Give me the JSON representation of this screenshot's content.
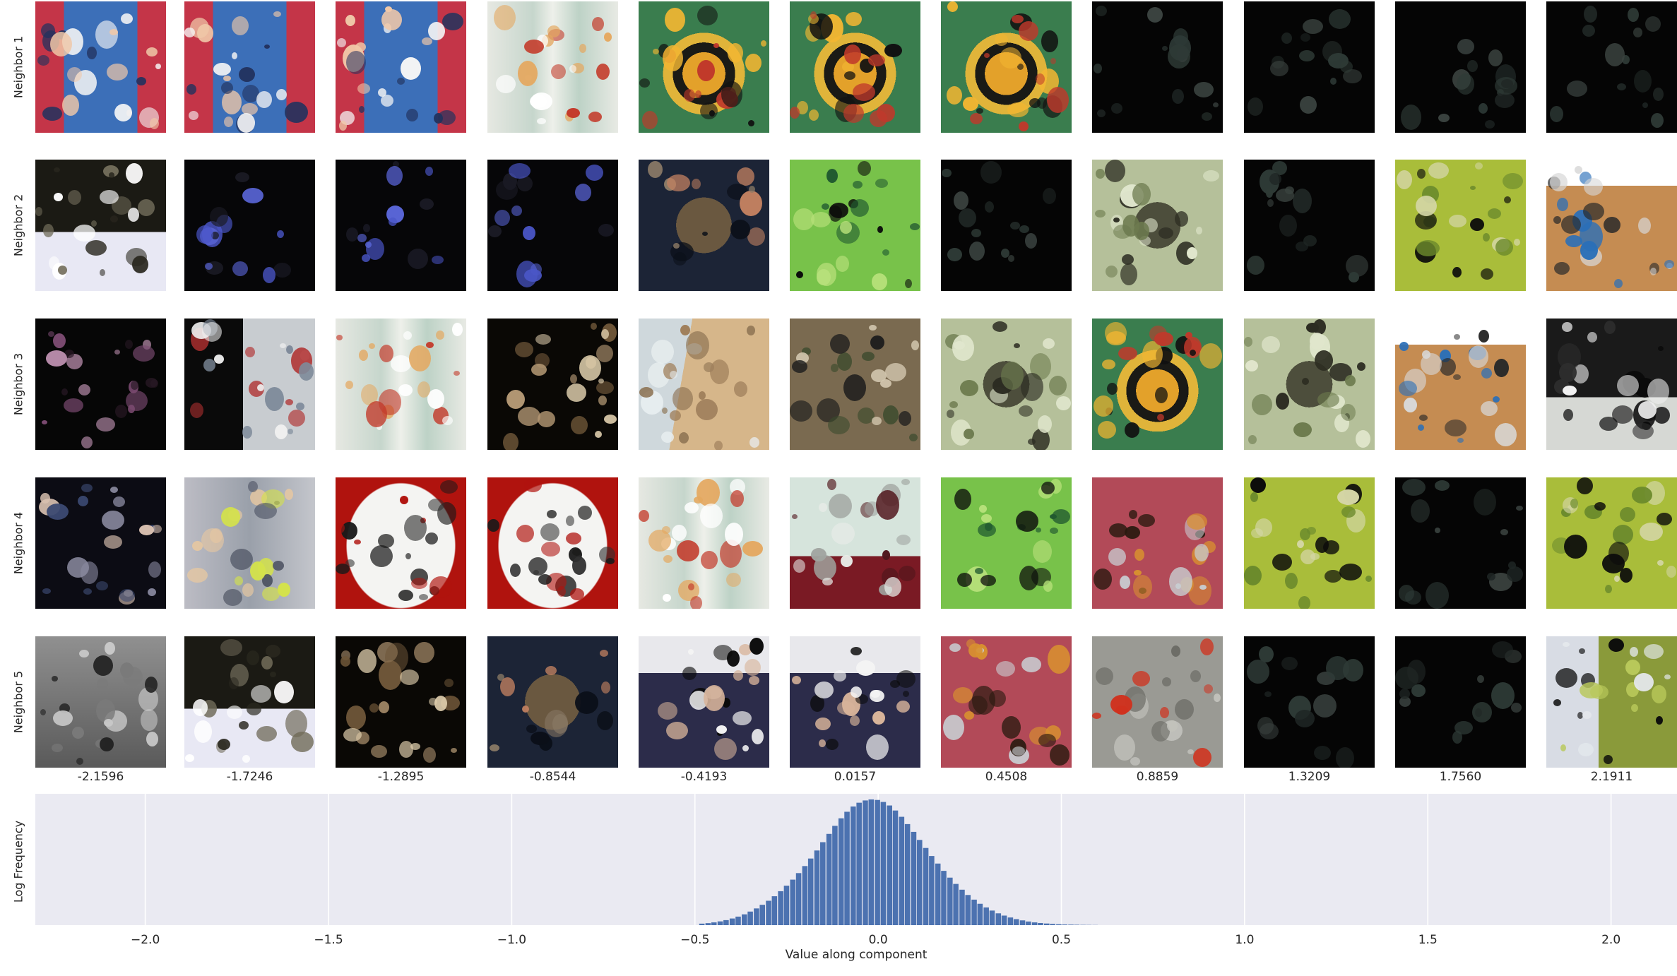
{
  "neighbors": {
    "row_labels": [
      "Neighbor 1",
      "Neighbor 2",
      "Neighbor 3",
      "Neighbor 4",
      "Neighbor 5"
    ],
    "column_values": [
      "-2.1596",
      "-1.7246",
      "-1.2895",
      "-0.8544",
      "-0.4193",
      "0.0157",
      "0.4508",
      "0.8859",
      "1.3209",
      "1.7560",
      "2.1911"
    ],
    "thumbnails": [
      [
        "graduation-child",
        "graduation-child",
        "graduation-child",
        "glass-bottles",
        "orange-black-salamanders",
        "orange-black-salamanders",
        "orange-black-salamanders",
        "dark-masked",
        "dark-masked",
        "dark-masked",
        "dark-masked"
      ],
      [
        "masked-white-fabric",
        "dark-masked-blue-dots",
        "dark-masked-blue-dots",
        "dark-masked-blue-dots",
        "dark-bag-masked",
        "green-beetle-leaf",
        "dark-masked",
        "ground-beetle",
        "dark-masked",
        "dragonfly-green-grass",
        "instant-camera-box"
      ],
      [
        "masked-purple-spots",
        "masked-light-spots",
        "glass-bottles",
        "masked-brown-patches",
        "rock-shore",
        "bird-in-branches",
        "ground-beetle",
        "orange-black-salamanders",
        "ground-beetle",
        "instant-camera-box",
        "black-animal-masked"
      ],
      [
        "masked-crowd",
        "tennis-player",
        "guitar-pick-signed",
        "guitar-pick-signed",
        "glass-bottles",
        "glass-and-jigger",
        "green-beetle-leaf",
        "acoustic-guitar",
        "dragonfly-green-grass",
        "dark-masked",
        "dragonfly-green-grass"
      ],
      [
        "grayscale-village",
        "masked-white-fabric",
        "masked-brown-patches",
        "dark-bag-masked",
        "graduates-group",
        "graduates-group",
        "acoustic-guitar",
        "red-salamander-gravel",
        "dark-masked",
        "dark-masked",
        "frog-masked"
      ]
    ]
  },
  "chart_data": {
    "type": "bar",
    "title": "",
    "xlabel": "Value along component",
    "ylabel": "Log Frequency",
    "xlim": [
      -2.3,
      2.18
    ],
    "xticks": [
      -2.0,
      -1.5,
      -1.0,
      -0.5,
      0.0,
      0.5,
      1.0,
      1.5,
      2.0
    ],
    "xtick_labels": [
      "−2.0",
      "−1.5",
      "−1.0",
      "−0.5",
      "0.0",
      "0.5",
      "1.0",
      "1.5",
      "2.0"
    ],
    "bin_width": 0.0165,
    "bin_centers": [
      -0.48,
      -0.463,
      -0.447,
      -0.43,
      -0.414,
      -0.397,
      -0.381,
      -0.364,
      -0.348,
      -0.331,
      -0.315,
      -0.298,
      -0.282,
      -0.265,
      -0.249,
      -0.232,
      -0.216,
      -0.199,
      -0.183,
      -0.166,
      -0.15,
      -0.133,
      -0.117,
      -0.1,
      -0.084,
      -0.067,
      -0.051,
      -0.034,
      -0.018,
      -0.001,
      0.015,
      0.032,
      0.048,
      0.065,
      0.081,
      0.098,
      0.114,
      0.131,
      0.147,
      0.164,
      0.18,
      0.197,
      0.213,
      0.23,
      0.246,
      0.263,
      0.279,
      0.296,
      0.312,
      0.329,
      0.345,
      0.362,
      0.378,
      0.395,
      0.411,
      0.428,
      0.444,
      0.461,
      0.477,
      0.494,
      0.51,
      0.527,
      0.543,
      0.56,
      0.576,
      0.593
    ],
    "values": [
      0.012,
      0.016,
      0.022,
      0.03,
      0.04,
      0.053,
      0.068,
      0.086,
      0.108,
      0.133,
      0.162,
      0.194,
      0.23,
      0.27,
      0.314,
      0.362,
      0.414,
      0.47,
      0.53,
      0.594,
      0.66,
      0.726,
      0.79,
      0.85,
      0.902,
      0.944,
      0.974,
      0.992,
      1.0,
      0.996,
      0.98,
      0.952,
      0.912,
      0.862,
      0.804,
      0.742,
      0.678,
      0.614,
      0.55,
      0.49,
      0.432,
      0.378,
      0.328,
      0.282,
      0.24,
      0.203,
      0.17,
      0.141,
      0.116,
      0.094,
      0.076,
      0.061,
      0.048,
      0.038,
      0.029,
      0.022,
      0.017,
      0.013,
      0.01,
      0.007,
      0.005,
      0.004,
      0.003,
      0.002,
      0.0015,
      0.001
    ],
    "grid": true,
    "bar_color": "#4c72b0",
    "background_color": "#eaeaf2"
  }
}
